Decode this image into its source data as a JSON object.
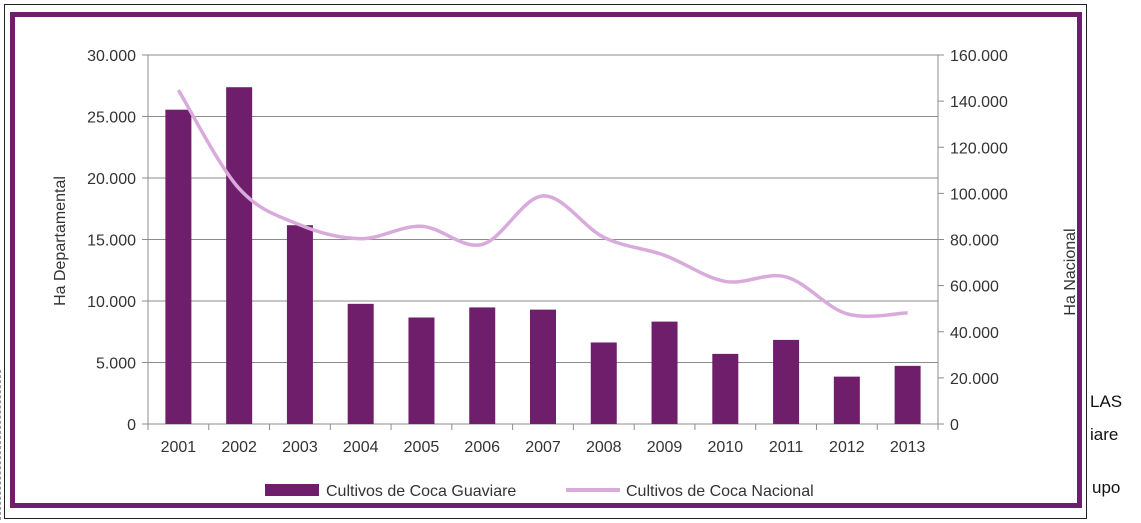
{
  "chart_data": {
    "type": "bar+line",
    "categories": [
      "2001",
      "2002",
      "2003",
      "2004",
      "2005",
      "2006",
      "2007",
      "2008",
      "2009",
      "2010",
      "2011",
      "2012",
      "2013"
    ],
    "series": [
      {
        "name": "Cultivos de Coca Guaviare",
        "type": "bar",
        "axis": "left",
        "color": "#6e1e6b",
        "values": [
          25553,
          27381,
          16163,
          9769,
          8658,
          9477,
          9299,
          6629,
          8325,
          5701,
          6839,
          3851,
          4725
        ]
      },
      {
        "name": "Cultivos de Coca Nacional",
        "type": "line",
        "axis": "right",
        "color": "#d9aadc",
        "values": [
          144807,
          102071,
          86340,
          80350,
          85750,
          77870,
          98899,
          80953,
          73139,
          61811,
          63762,
          47788,
          48189
        ]
      }
    ],
    "y_left": {
      "label": "Ha Departamental",
      "range": [
        0,
        30000
      ],
      "ticks": [
        "0",
        "5.000",
        "10.000",
        "15.000",
        "20.000",
        "25.000",
        "30.000"
      ]
    },
    "y_right": {
      "label": "Ha Nacional",
      "range": [
        0,
        160000
      ],
      "ticks": [
        "0",
        "20.000",
        "40.000",
        "60.000",
        "80.000",
        "100.000",
        "120.000",
        "140.000",
        "160.000"
      ]
    },
    "grid": true,
    "legend_position": "bottom"
  },
  "side_fragments": [
    "LAS",
    "iare",
    "upo"
  ],
  "colors": {
    "frame": "#6e1e6b",
    "bar": "#6e1e6b",
    "line": "#d9aadc",
    "grid": "#8c8c8c"
  }
}
